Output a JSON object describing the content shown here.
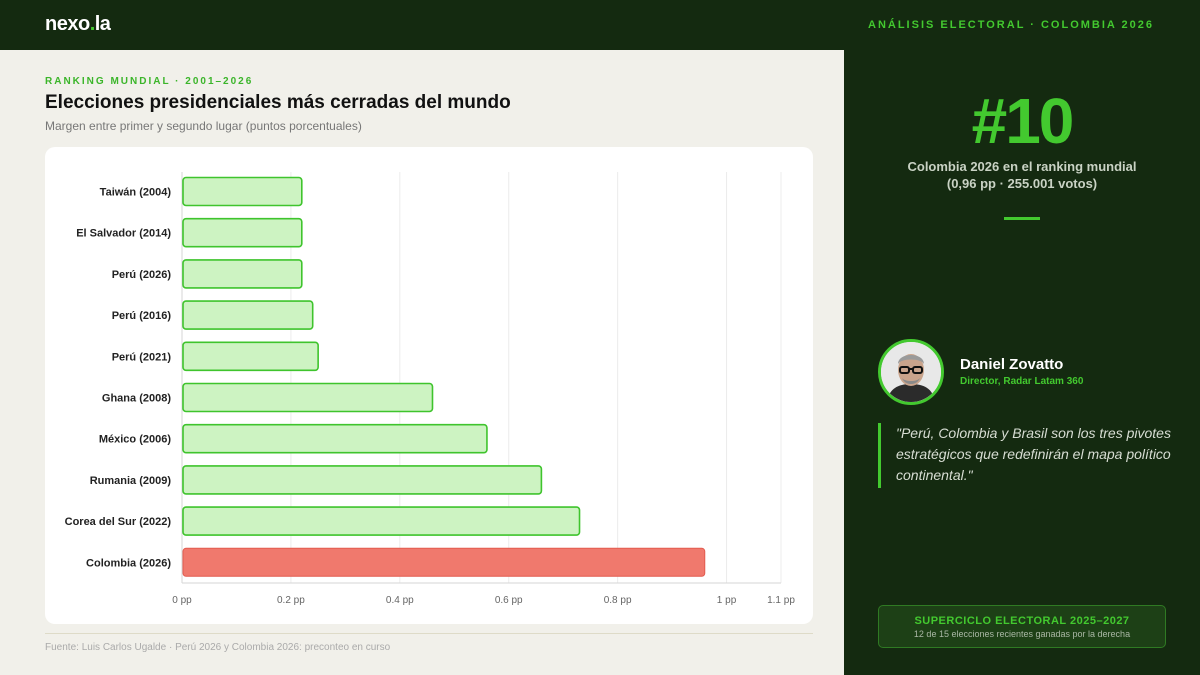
{
  "header": {
    "logo_main": "nexo",
    "logo_dot": ".",
    "logo_tld": "la",
    "section_label": "ANÁLISIS ELECTORAL · COLOMBIA 2026"
  },
  "main": {
    "eyebrow": "RANKING MUNDIAL · 2001–2026",
    "title": "Elecciones presidenciales más cerradas del mundo",
    "subtitle": "Margen entre primer y segundo lugar (puntos porcentuales)",
    "source": "Fuente: Luis Carlos Ugalde · Perú 2026 y Colombia 2026: preconteo en curso"
  },
  "chart_data": {
    "type": "bar",
    "orientation": "horizontal",
    "categories": [
      "Taiwán (2004)",
      "El Salvador (2014)",
      "Perú (2026)",
      "Perú (2016)",
      "Perú (2021)",
      "Ghana (2008)",
      "México (2006)",
      "Rumania (2009)",
      "Corea del Sur (2022)",
      "Colombia (2026)"
    ],
    "values": [
      0.22,
      0.22,
      0.22,
      0.24,
      0.25,
      0.46,
      0.56,
      0.66,
      0.73,
      0.96
    ],
    "highlight_index": 9,
    "xlim": [
      0,
      1.1
    ],
    "xticks": [
      0,
      0.2,
      0.4,
      0.6,
      0.8,
      1,
      1.1
    ],
    "xtick_labels": [
      "0 pp",
      "0.2 pp",
      "0.4 pp",
      "0.6 pp",
      "0.8 pp",
      "1 pp",
      "1.1 pp"
    ],
    "grid": true,
    "colors": {
      "bar_fill": "#cdf3c2",
      "bar_stroke": "#3fc42d",
      "highlight_fill": "#f0796d",
      "highlight_stroke": "#e25a4e"
    }
  },
  "sidebar": {
    "rank": "#10",
    "rank_caption": "Colombia 2026 en el ranking mundial (0,96 pp · 255.001 votos)",
    "person_name": "Daniel Zovatto",
    "person_role": "Director, Radar Latam 360",
    "quote": "\"Perú, Colombia y Brasil son los tres pivotes estratégicos que redefinirán el mapa político continental.\"",
    "banner_title": "SUPERCICLO ELECTORAL 2025–2027",
    "banner_sub": "12 de 15 elecciones recientes ganadas por la derecha"
  },
  "colors": {
    "brand_dark": "#142a10",
    "accent": "#43c92f",
    "page_bg": "#f1f0ea"
  }
}
